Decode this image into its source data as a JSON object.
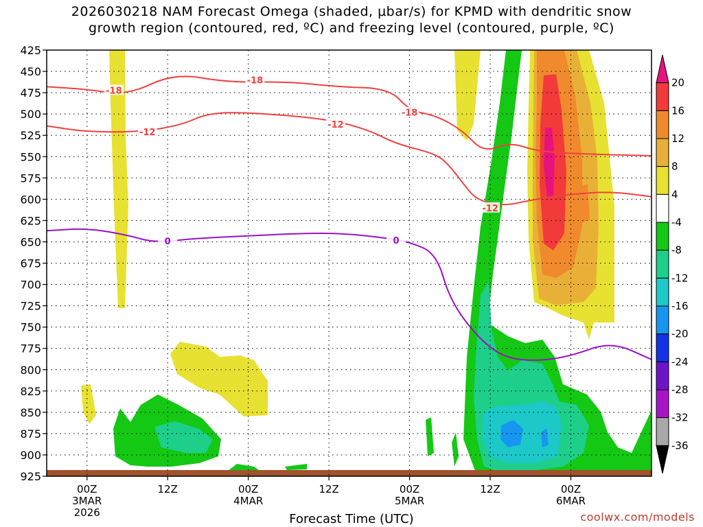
{
  "title_line1": "2026030218 NAM Forecast Omega (shaded, µbar/s) for KPMD with dendritic snow",
  "title_line2": "growth region (contoured, red, ºC) and freezing level (contoured, purple, ºC)",
  "credit": "coolwx.com/models",
  "chart_data": {
    "type": "time-height cross section",
    "title": "2026030218 NAM Forecast Omega (shaded, µbar/s) for KPMD with dendritic snow growth region (contoured, red, ºC) and freezing level (contoured, purple, ºC)",
    "xlabel": "Forecast Time (UTC)",
    "ylabel": "",
    "y_ticks": [
      425,
      450,
      475,
      500,
      525,
      550,
      575,
      600,
      625,
      650,
      675,
      700,
      725,
      750,
      775,
      800,
      825,
      850,
      875,
      900,
      925
    ],
    "y_range": [
      425,
      925
    ],
    "x_range": [
      "2026-03-02 18Z",
      "2026-03-06 12Z"
    ],
    "x_ticks": [
      {
        "time": "2026-03-03 00Z",
        "label": "00Z",
        "sub": "3MAR",
        "sub2": "2026"
      },
      {
        "time": "2026-03-03 12Z",
        "label": "12Z",
        "sub": "",
        "sub2": ""
      },
      {
        "time": "2026-03-04 00Z",
        "label": "00Z",
        "sub": "4MAR",
        "sub2": ""
      },
      {
        "time": "2026-03-04 12Z",
        "label": "12Z",
        "sub": "",
        "sub2": ""
      },
      {
        "time": "2026-03-05 00Z",
        "label": "00Z",
        "sub": "5MAR",
        "sub2": ""
      },
      {
        "time": "2026-03-05 12Z",
        "label": "12Z",
        "sub": "",
        "sub2": ""
      },
      {
        "time": "2026-03-06 00Z",
        "label": "00Z",
        "sub": "6MAR",
        "sub2": ""
      }
    ],
    "grid": "dotted",
    "colorbar": {
      "levels": [
        "20",
        "16",
        "12",
        "8",
        "4",
        "-4",
        "-8",
        "-12",
        "-16",
        "-20",
        "-24",
        "-28",
        "-32",
        "-36"
      ],
      "colors": [
        "#e8127f",
        "#f23a3a",
        "#f08a2c",
        "#e9b038",
        "#e7e132",
        "#ffffff",
        "#14c814",
        "#1ecf8a",
        "#1cc8c8",
        "#1696f0",
        "#1432e6",
        "#6e14c8",
        "#a914c8",
        "#a8a8a8",
        "#000000"
      ]
    },
    "contours": [
      {
        "name": "-18",
        "color": "#f04040",
        "points": [
          [
            "2026-03-02 18Z",
            468
          ],
          [
            "2026-03-03 00Z",
            471
          ],
          [
            "2026-03-03 06Z",
            478
          ],
          [
            "2026-03-03 13Z",
            452
          ],
          [
            "2026-03-03 21Z",
            463
          ],
          [
            "2026-03-04 06Z",
            462
          ],
          [
            "2026-03-04 13Z",
            468
          ],
          [
            "2026-03-04 21Z",
            470
          ],
          [
            "2026-03-05 00Z",
            496
          ],
          [
            "2026-03-05 04Z",
            502
          ],
          [
            "2026-03-05 08Z",
            520
          ],
          [
            "2026-03-05 11Z",
            545
          ],
          [
            "2026-03-05 15Z",
            533
          ],
          [
            "2026-03-05 19Z",
            544
          ],
          [
            "2026-03-06 02Z",
            547
          ],
          [
            "2026-03-06 12Z",
            549
          ]
        ],
        "labels": [
          [
            "2026-03-03 04Z",
            472
          ],
          [
            "2026-03-04 01Z",
            460
          ],
          [
            "2026-03-05 00Z",
            498
          ]
        ]
      },
      {
        "name": "-12",
        "color": "#f04040",
        "points": [
          [
            "2026-03-02 18Z",
            514
          ],
          [
            "2026-03-03 00Z",
            521
          ],
          [
            "2026-03-03 08Z",
            521
          ],
          [
            "2026-03-03 14Z",
            513
          ],
          [
            "2026-03-03 18Z",
            499
          ],
          [
            "2026-03-04 00Z",
            498
          ],
          [
            "2026-03-04 12Z",
            506
          ],
          [
            "2026-03-04 18Z",
            519
          ],
          [
            "2026-03-04 22Z",
            535
          ],
          [
            "2026-03-05 04Z",
            547
          ],
          [
            "2026-03-05 06Z",
            561
          ],
          [
            "2026-03-05 08Z",
            582
          ],
          [
            "2026-03-05 10Z",
            601
          ],
          [
            "2026-03-05 14Z",
            608
          ],
          [
            "2026-03-05 18Z",
            601
          ],
          [
            "2026-03-06 00Z",
            594
          ],
          [
            "2026-03-06 06Z",
            591
          ],
          [
            "2026-03-06 12Z",
            597
          ]
        ],
        "labels": [
          [
            "2026-03-03 09Z",
            521
          ],
          [
            "2026-03-04 13Z",
            512
          ],
          [
            "2026-03-05 12Z",
            610
          ]
        ]
      },
      {
        "name": "0",
        "color": "#9a10c8",
        "points": [
          [
            "2026-03-02 18Z",
            637
          ],
          [
            "2026-03-03 00Z",
            634
          ],
          [
            "2026-03-03 06Z",
            642
          ],
          [
            "2026-03-03 10Z",
            651
          ],
          [
            "2026-03-03 16Z",
            646
          ],
          [
            "2026-03-04 00Z",
            643
          ],
          [
            "2026-03-04 08Z",
            640
          ],
          [
            "2026-03-04 14Z",
            640
          ],
          [
            "2026-03-04 20Z",
            645
          ],
          [
            "2026-03-05 00Z",
            650
          ],
          [
            "2026-03-05 04Z",
            664
          ],
          [
            "2026-03-05 06Z",
            718
          ],
          [
            "2026-03-05 10Z",
            761
          ],
          [
            "2026-03-05 14Z",
            786
          ],
          [
            "2026-03-05 19Z",
            790
          ],
          [
            "2026-03-06 00Z",
            784
          ],
          [
            "2026-03-06 06Z",
            767
          ],
          [
            "2026-03-06 12Z",
            788
          ]
        ],
        "labels": [
          [
            "2026-03-03 12Z",
            649
          ],
          [
            "2026-03-04 22Z",
            648
          ]
        ]
      }
    ]
  }
}
